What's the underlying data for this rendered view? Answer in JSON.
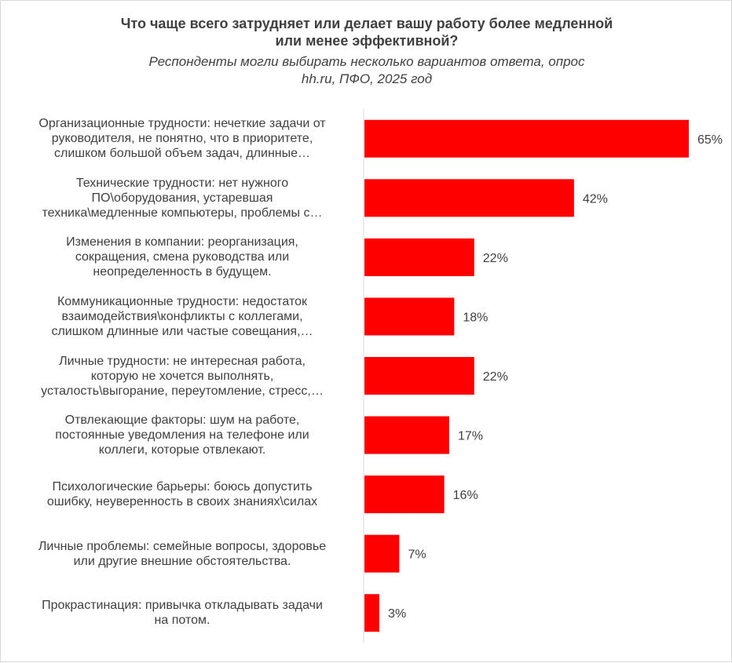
{
  "chart_data": {
    "type": "bar",
    "orientation": "horizontal",
    "title": "Что чаще всего затрудняет или делает вашу работу более медленной или менее эффективной?",
    "title_lines": [
      "Что чаще всего затрудняет или делает вашу работу более медленной",
      "или менее эффективной?"
    ],
    "subtitle": "Респонденты могли выбирать несколько вариантов ответа, опрос hh.ru, ПФО, 2025 год",
    "subtitle_lines": [
      "Респонденты могли выбирать несколько вариантов ответа, опрос",
      "hh.ru, ПФО, 2025 год"
    ],
    "categories": [
      [
        "Организационные трудности: нечеткие задачи от",
        "руководителя, не понятно, что в приоритете,",
        "слишком большой объем задач, длинные…"
      ],
      [
        "Технические трудности: нет нужного",
        "ПО\\оборудования, устаревшая",
        "техника\\медленные компьютеры, проблемы с…"
      ],
      [
        "Изменения в компании: реорганизация,",
        "сокращения, смена руководства или",
        "неопределенность в будущем."
      ],
      [
        "Коммуникационные трудности: недостаток",
        "взаимодействия\\конфликты с коллегами,",
        "слишком длинные или частые совещания,…"
      ],
      [
        "Личные трудности: не интересная работа,",
        "которую не хочется выполнять,",
        "усталость\\выгорание, переутомление, стресс,…"
      ],
      [
        "Отвлекающие факторы: шум на работе,",
        "постоянные уведомления на телефоне или",
        "коллеги, которые отвлекают."
      ],
      [
        "Психологические барьеры: боюсь допустить",
        "ошибку, неуверенность в своих знаниях\\силах"
      ],
      [
        "Личные проблемы: семейные вопросы, здоровье",
        "или другие внешние обстоятельства."
      ],
      [
        "Прокрастинация: привычка откладывать задачи",
        "на потом."
      ]
    ],
    "values": [
      65,
      42,
      22,
      18,
      22,
      17,
      16,
      7,
      3
    ],
    "data_labels": [
      "65%",
      "42%",
      "22%",
      "18%",
      "22%",
      "17%",
      "16%",
      "7%",
      "3%"
    ],
    "xlim": [
      0,
      65
    ],
    "bar_color": "#ff0000",
    "grid": false,
    "legend": "none"
  }
}
